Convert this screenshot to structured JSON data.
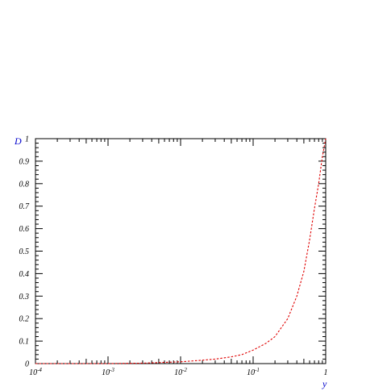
{
  "chart_data": {
    "type": "line",
    "xlabel": "y",
    "ylabel": "D",
    "xscale": "log",
    "xlim": [
      0.0001,
      1
    ],
    "ylim": [
      0,
      1
    ],
    "grid": false,
    "x_ticks": [
      {
        "base": "10",
        "exp": "-4"
      },
      {
        "base": "10",
        "exp": "-3"
      },
      {
        "base": "10",
        "exp": "-2"
      },
      {
        "base": "10",
        "exp": "-1"
      },
      {
        "base": "1",
        "exp": ""
      }
    ],
    "y_ticks": [
      "0",
      "0.1",
      "0.2",
      "0.3",
      "0.4",
      "0.5",
      "0.6",
      "0.7",
      "0.8",
      "0.9",
      "1"
    ],
    "series": [
      {
        "color": "#e00000",
        "dash": "dashed",
        "x": [
          0.0001,
          0.0003,
          0.001,
          0.003,
          0.01,
          0.02,
          0.03,
          0.05,
          0.07,
          0.1,
          0.15,
          0.2,
          0.3,
          0.4,
          0.5,
          0.6,
          0.7,
          0.8,
          0.9,
          1.0
        ],
        "y": [
          0.0,
          0.0,
          0.0,
          0.002,
          0.008,
          0.015,
          0.02,
          0.03,
          0.04,
          0.06,
          0.09,
          0.12,
          0.2,
          0.3,
          0.41,
          0.55,
          0.69,
          0.8,
          0.92,
          1.0
        ]
      }
    ],
    "axis_title_color": "#0000cc"
  }
}
